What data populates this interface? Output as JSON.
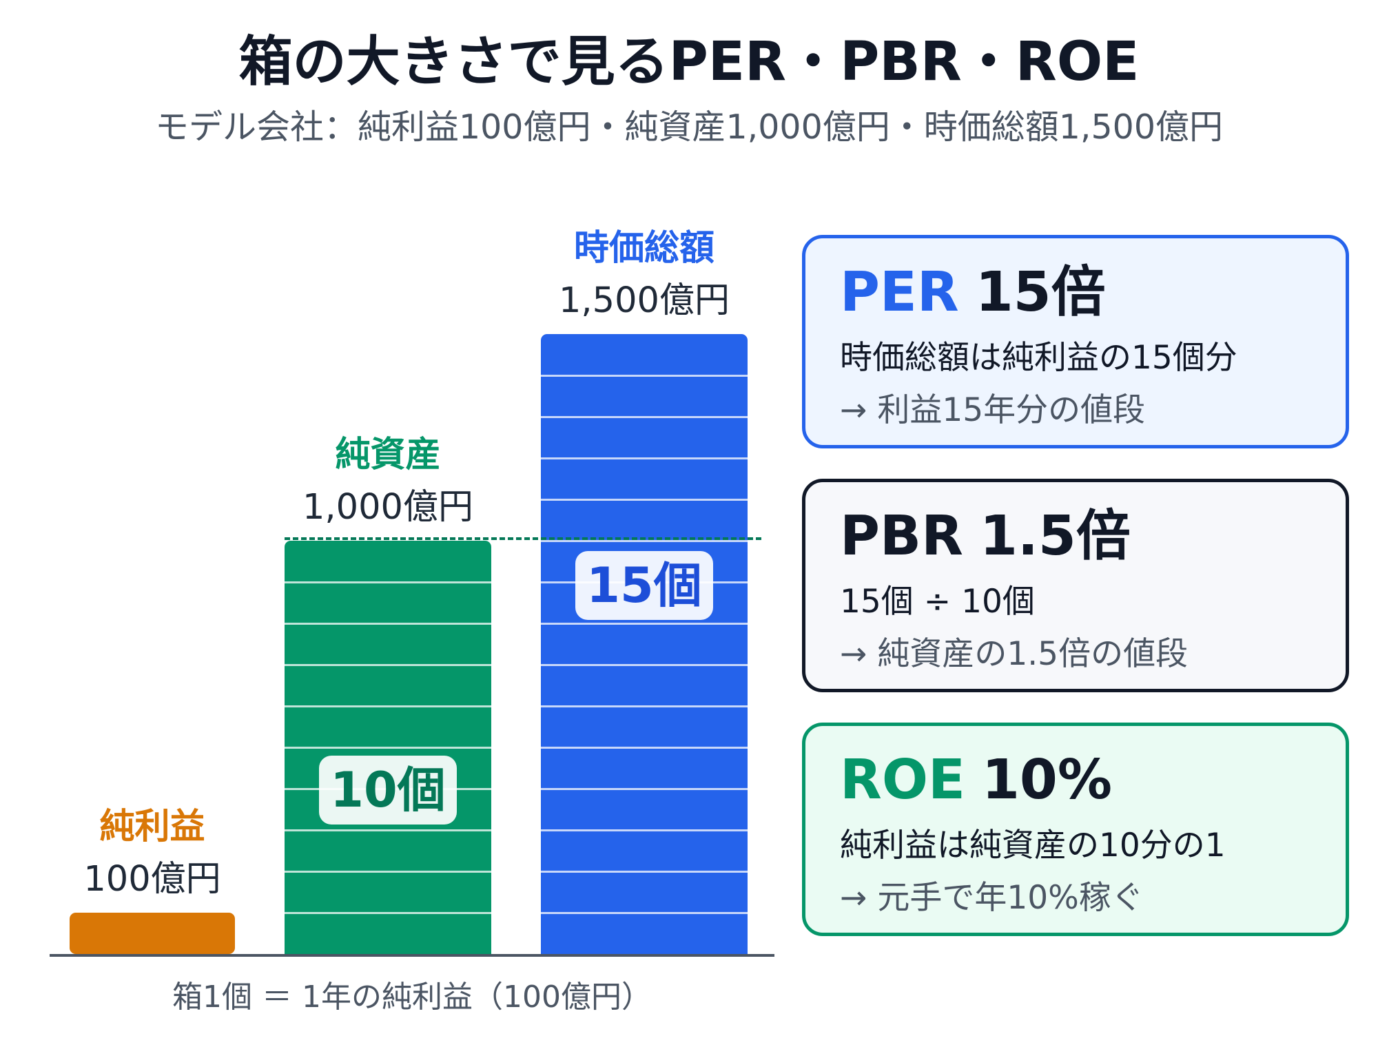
{
  "title": "箱の大きさで見るPER・PBR・ROE",
  "subtitle": "モデル会社：純利益100億円・純資産1,000億円・時価総額1,500億円",
  "colors": {
    "net_income": "#d97706",
    "net_assets": "#059669",
    "market_cap": "#2563eb",
    "per_card_bg": "#eef5ff",
    "pbr_card_bg": "#f7f8fb",
    "roe_card_bg": "#eafbf3"
  },
  "chart_data": {
    "type": "bar",
    "categories": [
      "純利益",
      "純資産",
      "時価総額"
    ],
    "values": [
      100,
      1000,
      1500
    ],
    "unit": "億円",
    "box_counts": [
      1,
      10,
      15
    ],
    "value_labels": [
      "100億円",
      "1,000億円",
      "1,500億円"
    ],
    "count_labels": [
      "",
      "10個",
      "15個"
    ],
    "reference_line": {
      "value": 1000,
      "style": "dashed"
    },
    "footnote": "箱1個 ＝ 1年の純利益（100億円）"
  },
  "cards": {
    "per": {
      "metric": "PER",
      "value": "15倍",
      "line1": "時価総額は純利益の15個分",
      "line2": "→ 利益15年分の値段"
    },
    "pbr": {
      "metric": "PBR",
      "value": "1.5倍",
      "line1": "15個 ÷ 10個",
      "line2": "→ 純資産の1.5倍の値段"
    },
    "roe": {
      "metric": "ROE",
      "value": "10%",
      "line1": "純利益は純資産の10分の1",
      "line2": "→ 元手で年10%稼ぐ"
    }
  }
}
